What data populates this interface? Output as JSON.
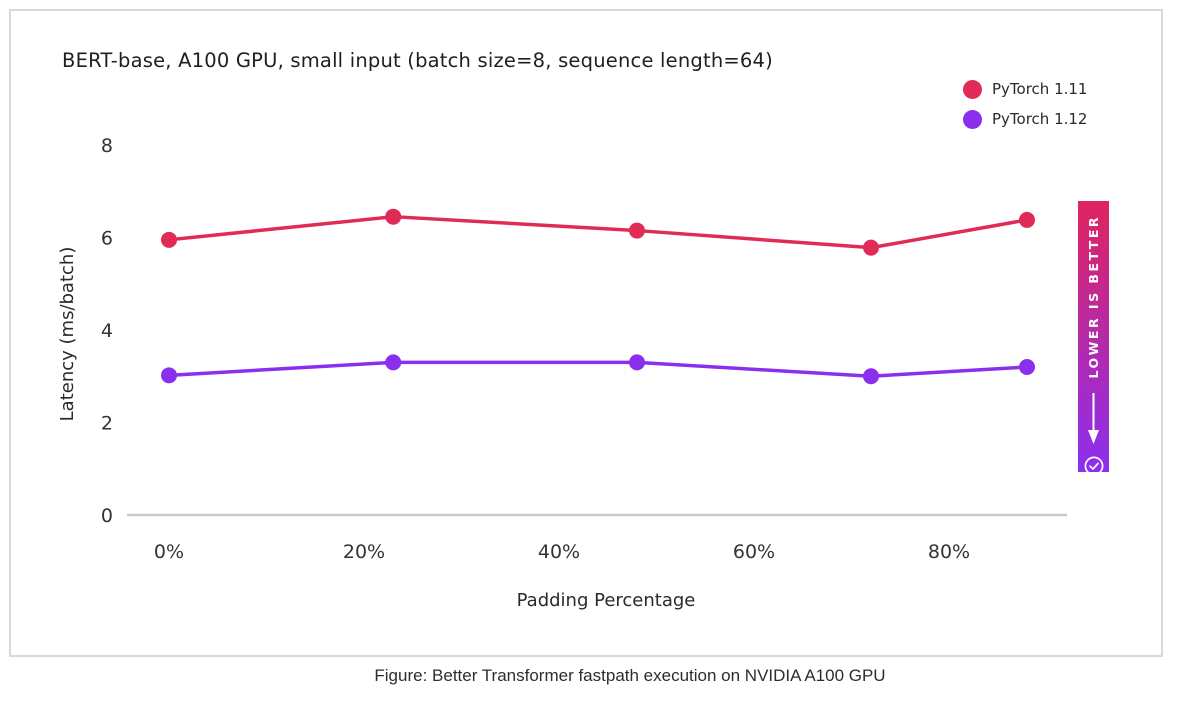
{
  "card": {
    "title": "BERT-base, A100 GPU, small input (batch size=8, sequence length=64)"
  },
  "chart_data": {
    "type": "line",
    "title": "BERT-base, A100 GPU, small input (batch size=8, sequence length=64)",
    "xlabel": "Padding Percentage",
    "ylabel": "Latency (ms/batch)",
    "x": [
      0,
      23,
      48,
      72,
      88
    ],
    "series": [
      {
        "name": "PyTorch 1.11",
        "color": "#e02b57",
        "values": [
          5.95,
          6.45,
          6.15,
          5.78,
          6.38
        ]
      },
      {
        "name": "PyTorch 1.12",
        "color": "#8b2fef",
        "values": [
          3.02,
          3.3,
          3.3,
          3.0,
          3.2
        ]
      }
    ],
    "xlim": [
      -4.3,
      92.1
    ],
    "ylim": [
      0,
      8
    ],
    "xticks": [
      0,
      20,
      40,
      60,
      80
    ],
    "xtick_labels": [
      "0%",
      "20%",
      "40%",
      "60%",
      "80%"
    ],
    "yticks": [
      0,
      2,
      4,
      6,
      8
    ],
    "ytick_labels": [
      "0",
      "2",
      "4",
      "6",
      "8"
    ],
    "grid": false,
    "legend_position": "top-right",
    "axis_line_color": "#c9c9c9",
    "tick_label_color": "#333333"
  },
  "banner": {
    "text": "LOWER IS BETTER",
    "gradient_top": "#e0245e",
    "gradient_bottom": "#8b2ff0",
    "icons": {
      "arrow": "down-arrow",
      "check": "check-circle"
    }
  },
  "caption": "Figure: Better Transformer fastpath execution on NVIDIA A100 GPU"
}
